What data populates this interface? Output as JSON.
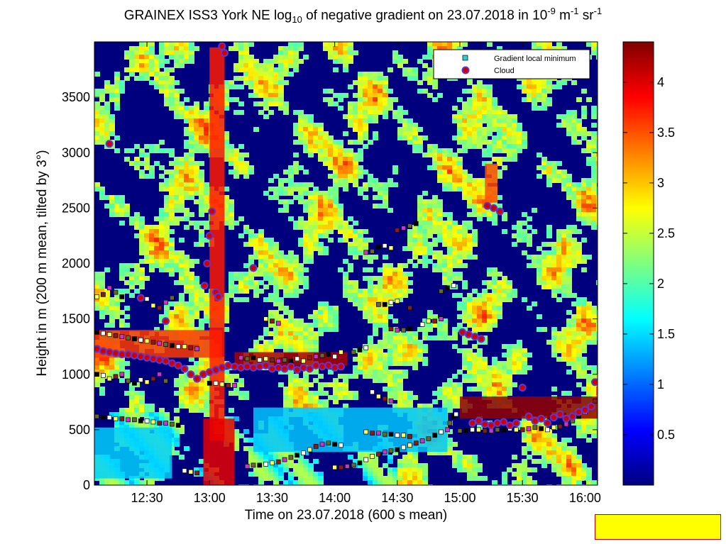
{
  "chart_data": {
    "type": "heatmap",
    "title_parts": {
      "prefix": "GRAINEX ISS3 York NE log",
      "sub": "10",
      "middle": " of negative gradient on 23.07.2018 in 10",
      "sup1": "-9",
      "unit1": " m",
      "sup2": "-1",
      "unit2": " sr",
      "sup3": "-1"
    },
    "xlabel": "Time on 23.07.2018 (600 s mean)",
    "ylabel": "Height in m (200 m mean, tilted by 3°)",
    "x_ticks": [
      "12:30",
      "13:00",
      "13:30",
      "14:00",
      "14:30",
      "15:00",
      "15:30",
      "16:00"
    ],
    "x_tick_hours": [
      12.5,
      13.0,
      13.5,
      14.0,
      14.5,
      15.0,
      15.5,
      16.0
    ],
    "xlim_hours": [
      12.08,
      16.1
    ],
    "y_ticks": [
      0,
      500,
      1000,
      1500,
      2000,
      2500,
      3000,
      3500
    ],
    "ylim": [
      0,
      4000
    ],
    "colorbar": {
      "ticks": [
        0.5,
        1,
        1.5,
        2,
        2.5,
        3,
        3.5,
        4
      ],
      "range": [
        0,
        4.4
      ],
      "colormap": [
        "#00007f",
        "#0000ff",
        "#007fff",
        "#00ffff",
        "#7fff7f",
        "#ffff00",
        "#ff7f00",
        "#ff0000",
        "#7f0000"
      ]
    },
    "legend": {
      "position": "top-right",
      "entries": [
        {
          "label": "Gradient local minimum",
          "marker": "square",
          "color": "#33cccc"
        },
        {
          "label": "Cloud",
          "marker": "circle",
          "color": "#cc0000",
          "edge": "#6633cc"
        }
      ]
    },
    "series": [
      {
        "name": "Cloud",
        "points": [
          [
            12.1,
            1230
          ],
          [
            12.15,
            1210
          ],
          [
            12.2,
            1200
          ],
          [
            12.25,
            1190
          ],
          [
            12.3,
            1180
          ],
          [
            12.35,
            1180
          ],
          [
            12.4,
            1170
          ],
          [
            12.45,
            1160
          ],
          [
            12.5,
            1150
          ],
          [
            12.55,
            1140
          ],
          [
            12.6,
            1130
          ],
          [
            12.65,
            1120
          ],
          [
            12.7,
            1100
          ],
          [
            12.75,
            1080
          ],
          [
            12.8,
            1050
          ],
          [
            12.85,
            1000
          ],
          [
            12.9,
            960
          ],
          [
            12.95,
            1000
          ],
          [
            13.0,
            1020
          ],
          [
            13.05,
            1040
          ],
          [
            13.1,
            1060
          ],
          [
            13.15,
            1080
          ],
          [
            13.2,
            1070
          ],
          [
            13.25,
            1060
          ],
          [
            13.3,
            1070
          ],
          [
            13.35,
            1060
          ],
          [
            13.4,
            1070
          ],
          [
            13.45,
            1080
          ],
          [
            13.5,
            1050
          ],
          [
            13.55,
            1060
          ],
          [
            13.6,
            1050
          ],
          [
            13.65,
            1070
          ],
          [
            13.7,
            1040
          ],
          [
            13.75,
            1060
          ],
          [
            13.8,
            1050
          ],
          [
            13.85,
            1080
          ],
          [
            13.9,
            1070
          ],
          [
            13.95,
            1080
          ],
          [
            14.0,
            1060
          ],
          [
            14.05,
            1070
          ],
          [
            13.02,
            2470
          ],
          [
            13.0,
            2250
          ],
          [
            12.98,
            2000
          ],
          [
            12.96,
            1800
          ],
          [
            13.05,
            1740
          ],
          [
            13.07,
            1700
          ],
          [
            13.1,
            3960
          ],
          [
            13.12,
            3900
          ],
          [
            13.35,
            1960
          ],
          [
            12.2,
            3080
          ],
          [
            12.45,
            1690
          ],
          [
            12.65,
            1480
          ],
          [
            15.02,
            1380
          ],
          [
            15.07,
            1360
          ],
          [
            15.12,
            1340
          ],
          [
            15.17,
            1320
          ],
          [
            15.22,
            2520
          ],
          [
            15.27,
            2500
          ],
          [
            15.32,
            2470
          ],
          [
            15.5,
            880
          ],
          [
            15.45,
            560
          ],
          [
            15.55,
            620
          ],
          [
            15.6,
            580
          ],
          [
            15.65,
            600
          ],
          [
            15.7,
            560
          ],
          [
            15.75,
            610
          ],
          [
            15.8,
            640
          ],
          [
            15.85,
            600
          ],
          [
            15.9,
            620
          ],
          [
            15.95,
            660
          ],
          [
            16.0,
            680
          ],
          [
            16.05,
            710
          ],
          [
            16.08,
            930
          ],
          [
            15.1,
            560
          ],
          [
            15.15,
            580
          ],
          [
            15.2,
            550
          ],
          [
            15.25,
            540
          ],
          [
            15.3,
            560
          ],
          [
            15.35,
            570
          ],
          [
            15.4,
            540
          ]
        ]
      },
      {
        "name": "Gradient local minimum",
        "points": [
          [
            12.1,
            1380
          ],
          [
            12.15,
            1370
          ],
          [
            12.2,
            1360
          ],
          [
            12.25,
            1350
          ],
          [
            12.3,
            1340
          ],
          [
            12.35,
            1330
          ],
          [
            12.4,
            1320
          ],
          [
            12.45,
            1310
          ],
          [
            12.5,
            1300
          ],
          [
            12.55,
            1290
          ],
          [
            12.6,
            1280
          ],
          [
            12.65,
            1270
          ],
          [
            12.7,
            1260
          ],
          [
            12.75,
            1250
          ],
          [
            12.8,
            1250
          ],
          [
            12.85,
            1240
          ],
          [
            12.9,
            1230
          ],
          [
            12.1,
            620
          ],
          [
            12.15,
            610
          ],
          [
            12.2,
            610
          ],
          [
            12.25,
            600
          ],
          [
            12.3,
            600
          ],
          [
            12.35,
            590
          ],
          [
            12.4,
            590
          ],
          [
            12.45,
            580
          ],
          [
            12.5,
            580
          ],
          [
            12.55,
            570
          ],
          [
            12.6,
            560
          ],
          [
            12.65,
            560
          ],
          [
            12.7,
            550
          ],
          [
            12.75,
            540
          ],
          [
            12.8,
            130
          ],
          [
            12.85,
            120
          ],
          [
            12.9,
            110
          ],
          [
            13.3,
            170
          ],
          [
            13.35,
            180
          ],
          [
            13.4,
            180
          ],
          [
            13.45,
            190
          ],
          [
            13.5,
            200
          ],
          [
            13.55,
            210
          ],
          [
            13.6,
            230
          ],
          [
            13.65,
            250
          ],
          [
            13.7,
            270
          ],
          [
            13.75,
            290
          ],
          [
            13.8,
            320
          ],
          [
            13.85,
            350
          ],
          [
            13.9,
            370
          ],
          [
            13.95,
            380
          ],
          [
            14.0,
            370
          ],
          [
            14.05,
            360
          ],
          [
            14.0,
            160
          ],
          [
            14.05,
            160
          ],
          [
            14.1,
            170
          ],
          [
            14.15,
            180
          ],
          [
            14.2,
            200
          ],
          [
            14.25,
            230
          ],
          [
            14.3,
            260
          ],
          [
            14.35,
            280
          ],
          [
            14.4,
            300
          ],
          [
            14.45,
            310
          ],
          [
            14.5,
            320
          ],
          [
            14.55,
            340
          ],
          [
            14.6,
            360
          ],
          [
            14.65,
            380
          ],
          [
            14.7,
            400
          ],
          [
            14.75,
            420
          ],
          [
            14.8,
            450
          ],
          [
            14.85,
            480
          ],
          [
            14.25,
            480
          ],
          [
            14.3,
            470
          ],
          [
            14.35,
            470
          ],
          [
            14.4,
            460
          ],
          [
            14.45,
            460
          ],
          [
            14.5,
            450
          ],
          [
            14.55,
            450
          ],
          [
            14.6,
            440
          ],
          [
            13.25,
            1150
          ],
          [
            13.3,
            1140
          ],
          [
            13.35,
            1150
          ],
          [
            13.4,
            1130
          ],
          [
            13.45,
            1140
          ],
          [
            13.5,
            1130
          ],
          [
            13.55,
            1120
          ],
          [
            13.6,
            1130
          ],
          [
            13.65,
            1120
          ],
          [
            13.7,
            1140
          ],
          [
            13.75,
            1120
          ],
          [
            13.8,
            1150
          ],
          [
            13.85,
            1160
          ],
          [
            13.9,
            1170
          ],
          [
            13.95,
            1180
          ],
          [
            14.0,
            1160
          ],
          [
            14.05,
            1200
          ],
          [
            14.45,
            1410
          ],
          [
            14.5,
            1400
          ],
          [
            14.55,
            1400
          ],
          [
            14.6,
            1410
          ],
          [
            14.7,
            1450
          ],
          [
            14.75,
            1480
          ],
          [
            14.8,
            1480
          ],
          [
            14.85,
            1500
          ],
          [
            14.35,
            1630
          ],
          [
            14.4,
            1630
          ],
          [
            14.45,
            1650
          ],
          [
            14.5,
            1660
          ],
          [
            14.6,
            1600
          ],
          [
            14.25,
            2100
          ],
          [
            14.3,
            2110
          ],
          [
            14.35,
            2150
          ],
          [
            14.4,
            2160
          ],
          [
            14.45,
            2140
          ],
          [
            14.5,
            2300
          ],
          [
            14.55,
            2320
          ],
          [
            14.6,
            2340
          ],
          [
            14.65,
            2360
          ],
          [
            14.3,
            840
          ],
          [
            14.35,
            800
          ],
          [
            14.4,
            780
          ],
          [
            14.45,
            760
          ],
          [
            15.0,
            490
          ],
          [
            15.05,
            490
          ],
          [
            15.1,
            500
          ],
          [
            15.15,
            500
          ],
          [
            15.2,
            490
          ],
          [
            15.25,
            490
          ],
          [
            15.3,
            500
          ],
          [
            15.35,
            500
          ],
          [
            15.4,
            510
          ],
          [
            15.45,
            500
          ],
          [
            15.5,
            500
          ],
          [
            15.55,
            510
          ],
          [
            15.6,
            520
          ],
          [
            15.65,
            510
          ],
          [
            15.7,
            500
          ],
          [
            15.75,
            520
          ],
          [
            15.8,
            530
          ],
          [
            15.85,
            550
          ],
          [
            15.9,
            580
          ],
          [
            15.95,
            620
          ],
          [
            16.0,
            660
          ],
          [
            16.05,
            700
          ],
          [
            16.08,
            760
          ],
          [
            14.9,
            500
          ],
          [
            14.92,
            560
          ],
          [
            14.95,
            620
          ],
          [
            14.97,
            640
          ],
          [
            12.1,
            1700
          ],
          [
            12.15,
            1720
          ],
          [
            12.2,
            1780
          ],
          [
            12.25,
            1740
          ],
          [
            12.3,
            1700
          ],
          [
            12.5,
            1680
          ],
          [
            12.55,
            1620
          ],
          [
            12.6,
            1600
          ],
          [
            12.65,
            1650
          ],
          [
            12.7,
            1690
          ],
          [
            12.1,
            1000
          ],
          [
            12.15,
            990
          ],
          [
            12.2,
            960
          ],
          [
            12.25,
            980
          ],
          [
            12.3,
            1000
          ],
          [
            12.35,
            940
          ],
          [
            12.4,
            920
          ],
          [
            12.45,
            950
          ],
          [
            12.5,
            930
          ],
          [
            12.55,
            960
          ],
          [
            12.6,
            1000
          ],
          [
            12.65,
            940
          ],
          [
            13.0,
            920
          ],
          [
            13.05,
            920
          ],
          [
            13.1,
            910
          ],
          [
            13.15,
            900
          ],
          [
            13.2,
            900
          ],
          [
            14.15,
            1200
          ],
          [
            14.2,
            1220
          ],
          [
            14.25,
            1240
          ],
          [
            13.45,
            1500
          ],
          [
            13.5,
            1480
          ],
          [
            13.55,
            1460
          ],
          [
            14.85,
            1750
          ],
          [
            14.9,
            1780
          ],
          [
            14.95,
            1800
          ]
        ]
      }
    ]
  }
}
